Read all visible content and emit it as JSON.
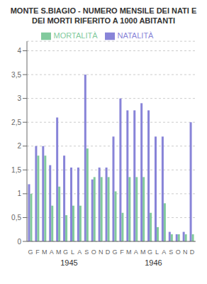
{
  "chart_data": {
    "type": "bar",
    "title": "MONTE S.BIAGIO - NUMERO MENSILE DEI NATI E DEI MORTI RIFERITO A 1000 ABITANTI",
    "categories": [
      "G",
      "F",
      "M",
      "A",
      "M",
      "G",
      "L",
      "A",
      "S",
      "O",
      "N",
      "D",
      "G",
      "F",
      "M",
      "A",
      "M",
      "G",
      "L",
      "A",
      "S",
      "O",
      "N",
      "D"
    ],
    "annotations": [
      "1945",
      "1946"
    ],
    "series": [
      {
        "name": "NATALITÀ",
        "color": "#8884d8",
        "values": [
          1.2,
          2.0,
          2.0,
          1.6,
          2.6,
          1.8,
          1.55,
          1.55,
          3.5,
          1.3,
          1.55,
          1.55,
          2.2,
          3.0,
          2.75,
          2.75,
          2.9,
          2.75,
          2.2,
          2.2,
          0.2,
          0.15,
          0.2,
          2.5
        ]
      },
      {
        "name": "MORTALITÀ",
        "color": "#82ca9d",
        "values": [
          1.0,
          1.8,
          1.8,
          0.75,
          1.15,
          0.55,
          0.75,
          0.75,
          1.95,
          1.35,
          1.35,
          1.35,
          1.05,
          0.6,
          1.35,
          1.35,
          1.35,
          0.6,
          0.3,
          0.8,
          0.15,
          0.15,
          0.15,
          0.15
        ]
      }
    ],
    "ylim": [
      0,
      4.2
    ],
    "yticks": [
      0,
      {
        "value": 0.5,
        "label": "0,5"
      },
      1,
      {
        "value": 1.5,
        "label": "1,5"
      },
      2,
      {
        "value": 2.5,
        "label": "2,5"
      },
      3,
      {
        "value": 3.5,
        "label": "3,5"
      },
      4
    ],
    "grid": true,
    "legend": "top"
  }
}
